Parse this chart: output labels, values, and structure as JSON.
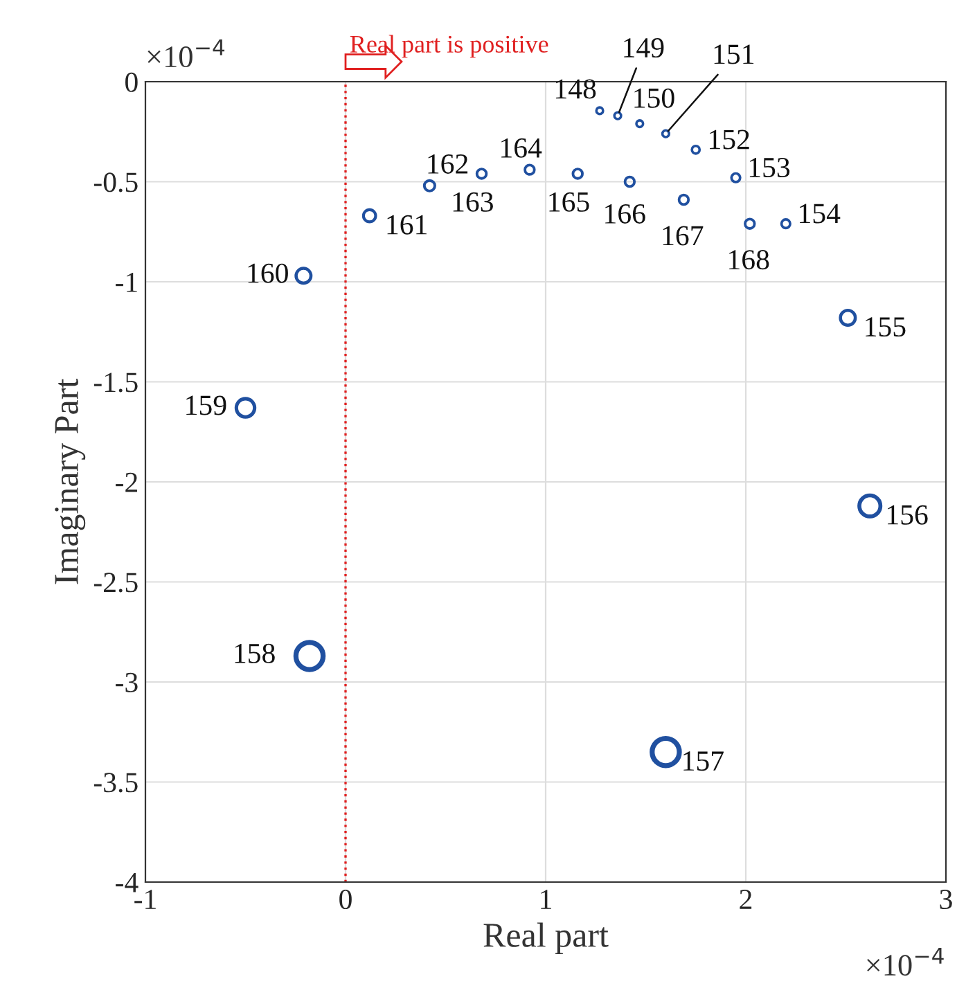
{
  "chart_data": {
    "type": "bubble",
    "xlabel": "Real part",
    "ylabel": "Imaginary Part",
    "xlim": [
      -1,
      3
    ],
    "xticks": [
      -1,
      0,
      1,
      2,
      3
    ],
    "ylim": [
      -4,
      0
    ],
    "yticks": [
      0,
      -0.5,
      -1,
      -1.5,
      -2,
      -2.5,
      -3,
      -3.5,
      -4
    ],
    "grid": true,
    "series": [
      {
        "color": "#2050a0",
        "x": [
          1.27,
          1.36,
          1.47,
          1.6,
          1.75,
          1.95,
          2.2,
          2.51,
          2.62,
          1.6,
          -0.18,
          -0.5,
          -0.21,
          0.12,
          0.42,
          0.68,
          0.92,
          1.16,
          1.42,
          1.69,
          2.02
        ],
        "values": [
          -0.145,
          -0.17,
          -0.21,
          -0.26,
          -0.34,
          -0.48,
          -0.71,
          -1.18,
          -2.12,
          -3.35,
          -2.87,
          -1.63,
          -0.97,
          -0.67,
          -0.52,
          -0.46,
          -0.44,
          -0.46,
          -0.5,
          -0.59,
          -0.71
        ],
        "sizes": [
          0.06,
          0.06,
          0.06,
          0.06,
          0.08,
          0.1,
          0.1,
          0.3,
          0.6,
          1,
          1,
          0.45,
          0.3,
          0.2,
          0.15,
          0.12,
          0.12,
          0.12,
          0.12,
          0.12,
          0.12
        ]
      }
    ],
    "ref_lines": [
      {
        "axis": "x",
        "value": 0,
        "label": "Real part is positive",
        "color": "#e02020",
        "line_style": "dotted"
      }
    ],
    "annotations": [
      {
        "text": "148",
        "x": 1.27,
        "y": -0.145
      },
      {
        "text": "149",
        "x": 1.36,
        "y": -0.17
      },
      {
        "text": "150",
        "x": 1.47,
        "y": -0.21
      },
      {
        "text": "151",
        "x": 1.6,
        "y": -0.26
      },
      {
        "text": "152",
        "x": 1.75,
        "y": -0.34
      },
      {
        "text": "153",
        "x": 1.95,
        "y": -0.48
      },
      {
        "text": "154",
        "x": 2.2,
        "y": -0.71
      },
      {
        "text": "155",
        "x": 2.51,
        "y": -1.18
      },
      {
        "text": "156",
        "x": 2.62,
        "y": -2.12
      },
      {
        "text": "157",
        "x": 1.6,
        "y": -3.35
      },
      {
        "text": "158",
        "x": -0.18,
        "y": -2.87
      },
      {
        "text": "159",
        "x": -0.5,
        "y": -1.63
      },
      {
        "text": "160",
        "x": -0.21,
        "y": -0.97
      },
      {
        "text": "161",
        "x": 0.12,
        "y": -0.67
      },
      {
        "text": "162",
        "x": 0.42,
        "y": -0.52
      },
      {
        "text": "163",
        "x": 0.68,
        "y": -0.46
      },
      {
        "text": "164",
        "x": 0.92,
        "y": -0.44
      },
      {
        "text": "165",
        "x": 1.16,
        "y": -0.46
      },
      {
        "text": "166",
        "x": 1.42,
        "y": -0.5
      },
      {
        "text": "167",
        "x": 1.69,
        "y": -0.59
      },
      {
        "text": "168",
        "x": 2.02,
        "y": -0.71
      },
      "×10$^{−4}$",
      "×10$^{−4}$"
    ]
  }
}
